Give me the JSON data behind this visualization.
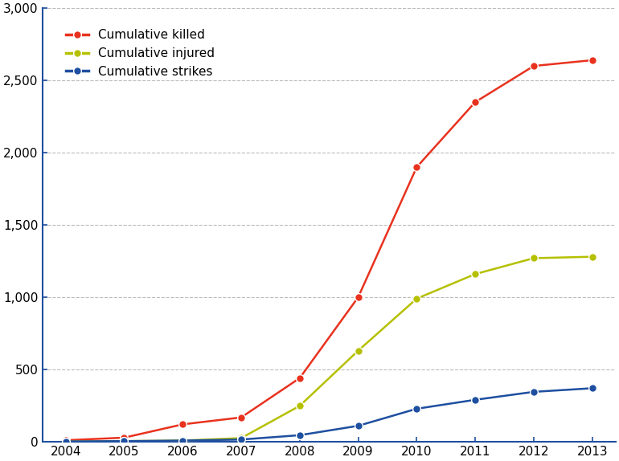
{
  "years": [
    2004,
    2005,
    2006,
    2007,
    2008,
    2009,
    2010,
    2011,
    2012,
    2013
  ],
  "cumulative_killed": [
    10,
    28,
    120,
    168,
    440,
    1000,
    1900,
    2350,
    2600,
    2640
  ],
  "cumulative_injured": [
    2,
    4,
    8,
    25,
    248,
    630,
    990,
    1160,
    1270,
    1280
  ],
  "cumulative_strikes": [
    2,
    4,
    8,
    15,
    45,
    110,
    228,
    290,
    345,
    370
  ],
  "killed_color": "#e8321e",
  "injured_color": "#b5c000",
  "strikes_color": "#1e4fa0",
  "spine_color": "#1e4fa0",
  "legend_labels": [
    "Cumulative killed",
    "Cumulative injured",
    "Cumulative strikes"
  ],
  "ylim": [
    0,
    3000
  ],
  "yticks": [
    0,
    500,
    1000,
    1500,
    2000,
    2500,
    3000
  ],
  "grid_color": "#aaaaaa",
  "background_color": "#ffffff",
  "line_width": 1.8,
  "marker_size": 7,
  "legend_fontsize": 11,
  "tick_fontsize": 11
}
